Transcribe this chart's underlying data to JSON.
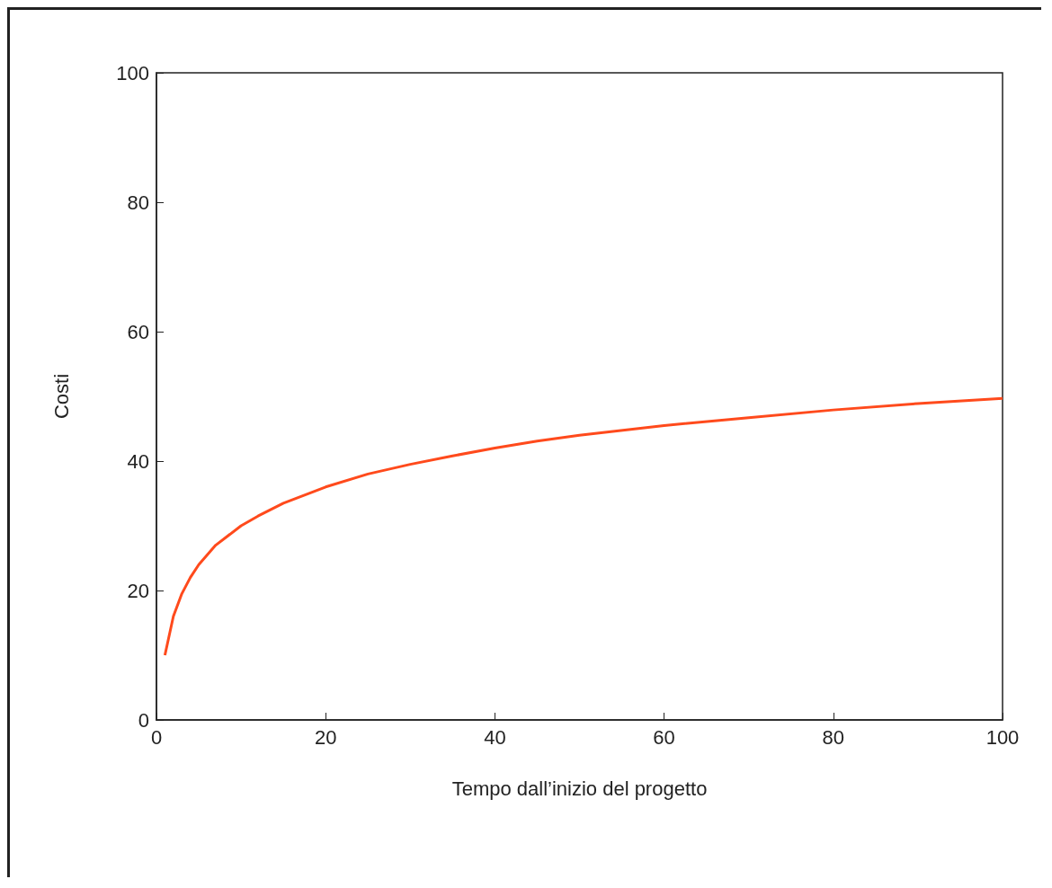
{
  "chart_data": {
    "type": "line",
    "xlabel": "Tempo dall’inizio del progetto",
    "ylabel": "Costi",
    "x": [
      1,
      2,
      3,
      4,
      5,
      7,
      10,
      12,
      15,
      20,
      25,
      30,
      35,
      40,
      45,
      50,
      60,
      70,
      80,
      90,
      100
    ],
    "series": [
      {
        "color": "#ff4a1c",
        "values": [
          10,
          16,
          19.5,
          22,
          24,
          27,
          30,
          31.5,
          33.5,
          36,
          38,
          39.5,
          40.8,
          42,
          43.1,
          44,
          45.5,
          46.7,
          47.9,
          48.9,
          49.7
        ]
      }
    ],
    "xlim": [
      0,
      100
    ],
    "xticks": [
      0,
      20,
      40,
      60,
      80,
      100
    ],
    "ylim": [
      0,
      100
    ],
    "yticks": [
      0,
      20,
      40,
      60,
      80,
      100
    ],
    "grid": false,
    "marker": "none",
    "line_style": "solid"
  }
}
